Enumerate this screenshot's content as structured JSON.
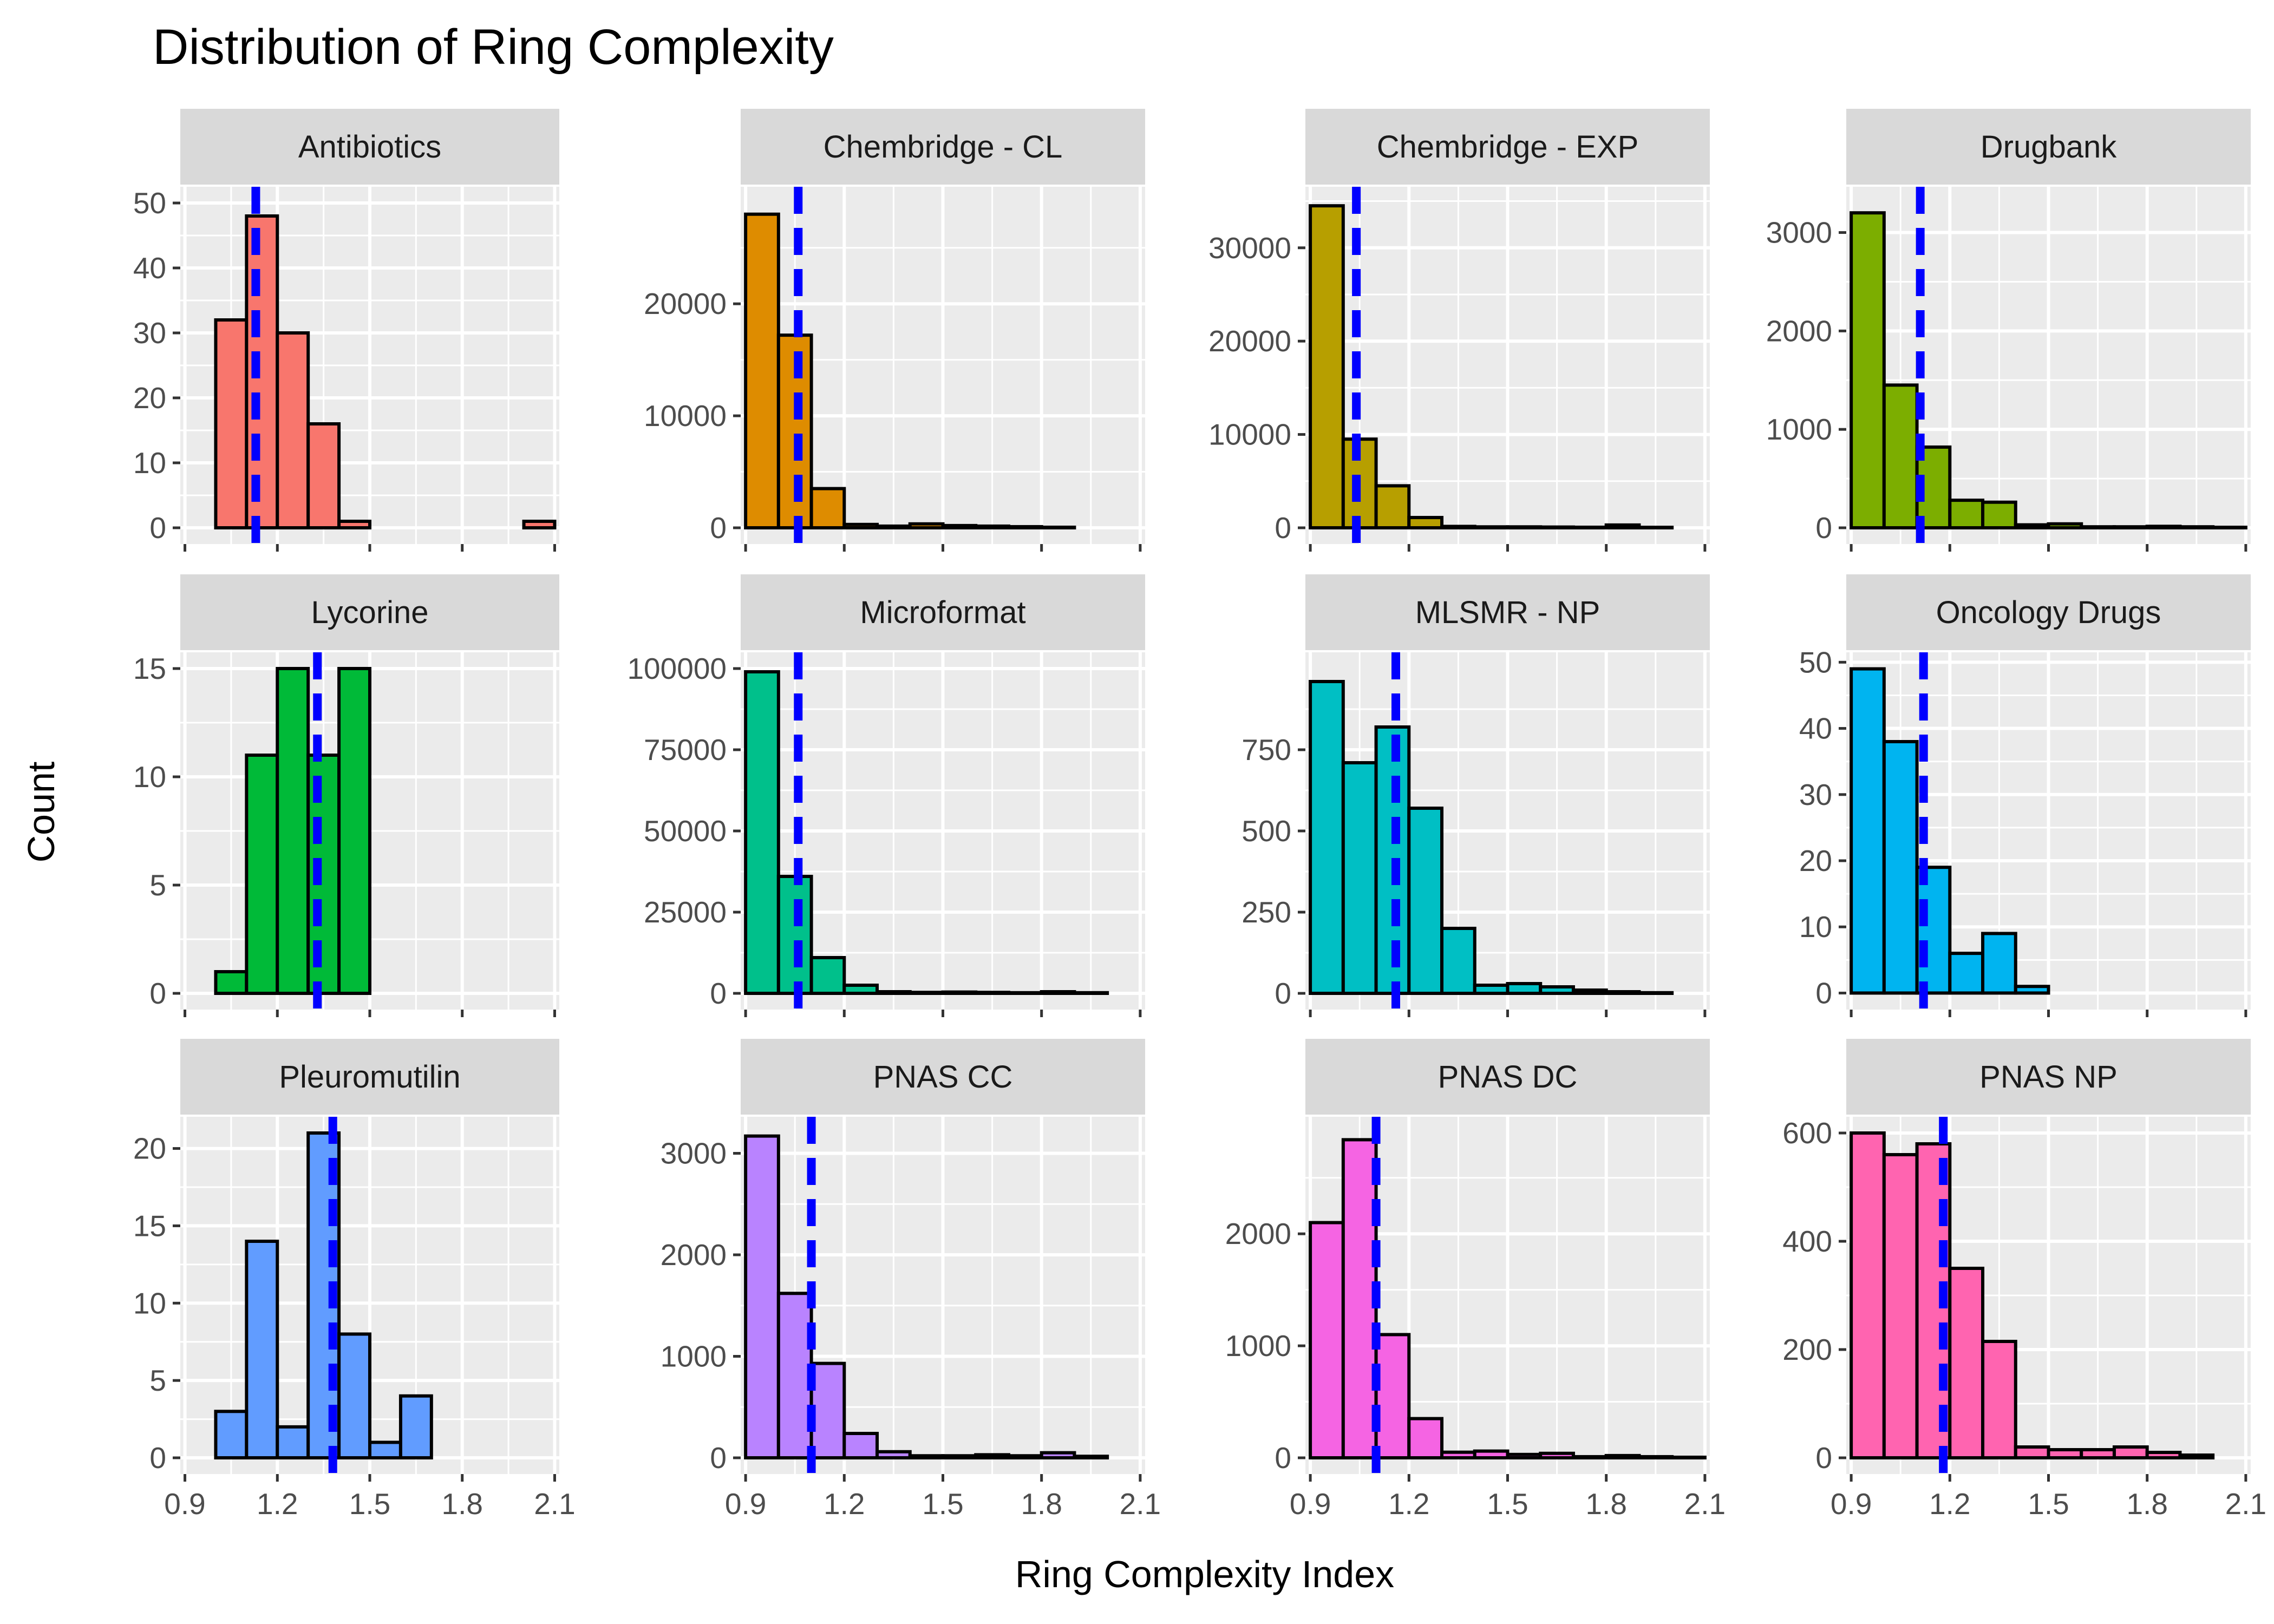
{
  "chart_data": {
    "type": "histogram-facets",
    "title": "Distribution of Ring Complexity",
    "xlabel": "Ring Complexity Index",
    "ylabel": "Count",
    "bin_centers": [
      0.95,
      1.05,
      1.15,
      1.25,
      1.35,
      1.45,
      1.55,
      1.65,
      1.75,
      1.85,
      1.95,
      2.05
    ],
    "xlim": [
      0.885,
      2.115
    ],
    "xticks": [
      0.9,
      1.2,
      1.5,
      1.8,
      2.1
    ],
    "xtick_labels": [
      "0.9",
      "1.2",
      "1.5",
      "1.8",
      "2.1"
    ],
    "fill_alpha": 0.1,
    "mean_line_color": "#0000ff",
    "panels": [
      {
        "name": "Antibiotics",
        "color": "#F8766D",
        "ylim": [
          -2.5,
          52.5
        ],
        "yticks": [
          0,
          10,
          20,
          30,
          40,
          50
        ],
        "ytick_labels": [
          "0",
          "10",
          "20",
          "30",
          "40",
          "50"
        ],
        "counts": [
          0,
          32,
          48,
          30,
          16,
          1,
          0,
          0,
          0,
          0,
          0,
          1
        ],
        "mean": 1.13
      },
      {
        "name": "Chembridge - CL",
        "color": "#DE8C00",
        "ylim": [
          -1450,
          30450
        ],
        "yticks": [
          0,
          10000,
          20000
        ],
        "ytick_labels": [
          "0",
          "10000",
          "20000"
        ],
        "counts": [
          28000,
          17200,
          3500,
          300,
          150,
          350,
          200,
          150,
          100,
          50,
          0,
          0
        ],
        "mean": 1.06
      },
      {
        "name": "Chembridge - EXP",
        "color": "#B79F00",
        "ylim": [
          -1740,
          36540
        ],
        "yticks": [
          0,
          10000,
          20000,
          30000
        ],
        "ytick_labels": [
          "0",
          "10000",
          "20000",
          "30000"
        ],
        "counts": [
          34500,
          9500,
          4500,
          1100,
          150,
          100,
          100,
          80,
          60,
          300,
          50,
          0
        ],
        "mean": 1.04
      },
      {
        "name": "Drugbank",
        "color": "#7CAE00",
        "ylim": [
          -165,
          3465
        ],
        "yticks": [
          0,
          1000,
          2000,
          3000
        ],
        "ytick_labels": [
          "0",
          "1000",
          "2000",
          "3000"
        ],
        "counts": [
          3200,
          1450,
          820,
          280,
          260,
          30,
          40,
          10,
          10,
          15,
          10,
          5
        ],
        "mean": 1.11
      },
      {
        "name": "Lycorine",
        "color": "#00BA38",
        "ylim": [
          -0.75,
          15.75
        ],
        "yticks": [
          0,
          5,
          10,
          15
        ],
        "ytick_labels": [
          "0",
          "5",
          "10",
          "15"
        ],
        "counts": [
          0,
          1,
          11,
          15,
          11,
          15,
          0,
          0,
          0,
          0,
          0,
          0
        ],
        "mean": 1.33
      },
      {
        "name": "Microformat",
        "color": "#00C08B",
        "ylim": [
          -5000,
          105000
        ],
        "yticks": [
          0,
          25000,
          50000,
          75000,
          100000
        ],
        "ytick_labels": [
          "0",
          "25000",
          "50000",
          "75000",
          "100000"
        ],
        "counts": [
          99000,
          36000,
          11000,
          2500,
          500,
          300,
          400,
          300,
          200,
          500,
          200,
          0
        ],
        "mean": 1.06
      },
      {
        "name": "MLSMR - NP",
        "color": "#00BFC4",
        "ylim": [
          -50,
          1050
        ],
        "yticks": [
          0,
          250,
          500,
          750
        ],
        "ytick_labels": [
          "0",
          "250",
          "500",
          "750"
        ],
        "counts": [
          960,
          710,
          820,
          570,
          200,
          25,
          30,
          20,
          10,
          5,
          2,
          0
        ],
        "mean": 1.16
      },
      {
        "name": "Oncology Drugs",
        "color": "#00B4F0",
        "ylim": [
          -2.5,
          51.5
        ],
        "yticks": [
          0,
          10,
          20,
          30,
          40,
          50
        ],
        "ytick_labels": [
          "0",
          "10",
          "20",
          "30",
          "40",
          "50"
        ],
        "counts": [
          49,
          38,
          19,
          6,
          9,
          1,
          0,
          0,
          0,
          0,
          0,
          0
        ],
        "mean": 1.12
      },
      {
        "name": "Pleuromutilin",
        "color": "#619CFF",
        "ylim": [
          -1.05,
          22.05
        ],
        "yticks": [
          0,
          5,
          10,
          15,
          20
        ],
        "ytick_labels": [
          "0",
          "5",
          "10",
          "15",
          "20"
        ],
        "counts": [
          0,
          3,
          14,
          2,
          21,
          8,
          1,
          4,
          0,
          0,
          0,
          0
        ],
        "mean": 1.38
      },
      {
        "name": "PNAS CC",
        "color": "#B983FF",
        "ylim": [
          -160,
          3360
        ],
        "yticks": [
          0,
          1000,
          2000,
          3000
        ],
        "ytick_labels": [
          "0",
          "1000",
          "2000",
          "3000"
        ],
        "counts": [
          3170,
          1620,
          930,
          240,
          60,
          20,
          20,
          30,
          20,
          50,
          15,
          0
        ],
        "mean": 1.1
      },
      {
        "name": "PNAS DC",
        "color": "#F564E3",
        "ylim": [
          -145,
          3045
        ],
        "yticks": [
          0,
          1000,
          2000
        ],
        "ytick_labels": [
          "0",
          "1000",
          "2000"
        ],
        "counts": [
          2100,
          2840,
          1100,
          350,
          50,
          60,
          30,
          40,
          10,
          20,
          10,
          5
        ],
        "mean": 1.1
      },
      {
        "name": "PNAS NP",
        "color": "#FF64B0",
        "ylim": [
          -30,
          630
        ],
        "yticks": [
          0,
          200,
          400,
          600
        ],
        "ytick_labels": [
          "0",
          "200",
          "400",
          "600"
        ],
        "counts": [
          600,
          560,
          580,
          350,
          215,
          20,
          15,
          15,
          20,
          10,
          5,
          0
        ],
        "mean": 1.18
      }
    ]
  }
}
